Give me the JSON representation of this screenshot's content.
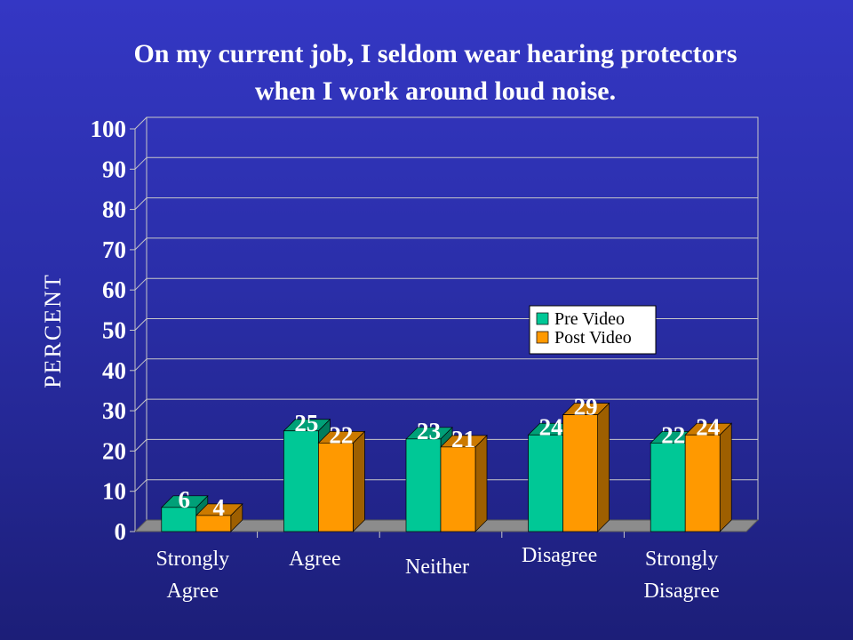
{
  "slide": {
    "title_line1": "On my current job, I seldom wear hearing protectors",
    "title_line2": "when I work around loud noise."
  },
  "chart_data": {
    "type": "bar",
    "title": "On my current job, I seldom wear hearing protectors when I work around loud noise.",
    "ylabel": "PERCENT",
    "xlabel": "",
    "ylim": [
      0,
      100
    ],
    "yticks": [
      0,
      10,
      20,
      30,
      40,
      50,
      60,
      70,
      80,
      90,
      100
    ],
    "grid": true,
    "legend_position": "center-right",
    "categories": [
      [
        "Strongly",
        "Agree"
      ],
      [
        "Agree"
      ],
      [
        "Neither"
      ],
      [
        "Disagree"
      ],
      [
        "Strongly",
        "Disagree"
      ]
    ],
    "series": [
      {
        "name": "Pre Video",
        "color": "#00c896",
        "values": [
          6,
          25,
          23,
          24,
          22
        ]
      },
      {
        "name": "Post Video",
        "color": "#ff9900",
        "values": [
          4,
          22,
          21,
          29,
          24
        ]
      }
    ]
  }
}
